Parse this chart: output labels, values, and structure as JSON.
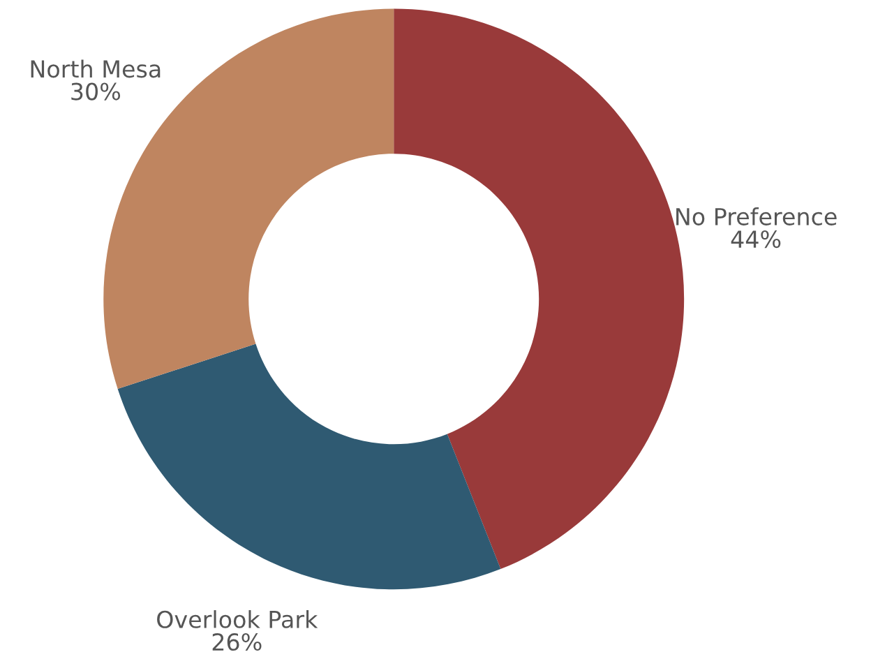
{
  "chart_data": {
    "type": "donut",
    "categories": [
      "No Preference",
      "Overlook Park",
      "North Mesa"
    ],
    "values": [
      44,
      26,
      30
    ],
    "colors": [
      "#993a3a",
      "#2f5a72",
      "#bf8560"
    ],
    "value_labels": [
      "44%",
      "26%",
      "30%"
    ]
  }
}
